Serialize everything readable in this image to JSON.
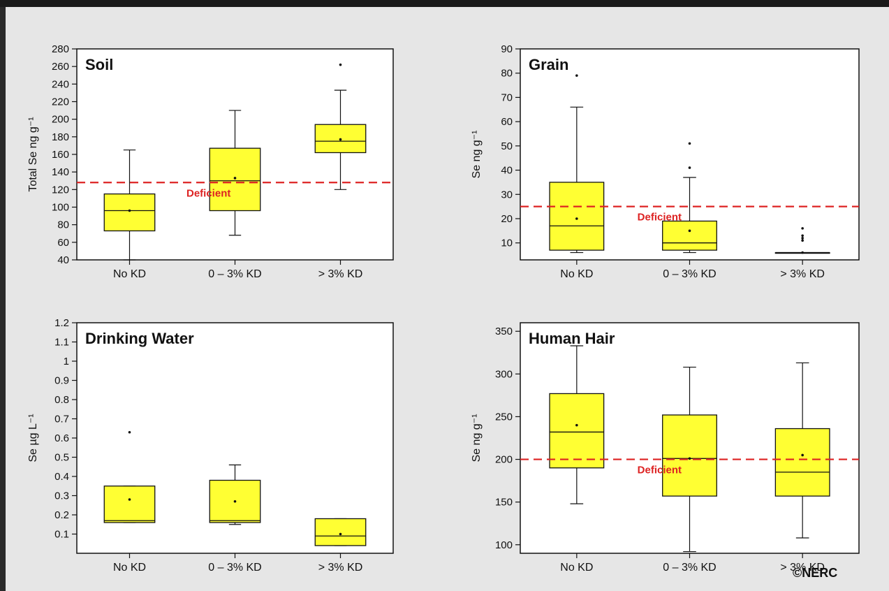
{
  "colors": {
    "box_fill": "#ffff33",
    "box_stroke": "#111111",
    "deficient_line": "#dd2222",
    "panel_bg": "#ffffff"
  },
  "credit": "©NERC",
  "chart_data": [
    {
      "type": "box",
      "title": "Soil",
      "ylabel": "Total Se ng g⁻¹",
      "ylim": [
        40,
        280
      ],
      "yticks": [
        40,
        60,
        80,
        100,
        120,
        140,
        160,
        180,
        200,
        220,
        240,
        260,
        280
      ],
      "categories": [
        "No KD",
        "0 – 3% KD",
        "> 3% KD"
      ],
      "boxes": [
        {
          "whisker_low": 40,
          "q1": 73,
          "median": 96,
          "mean": 96,
          "q3": 115,
          "whisker_high": 165,
          "outliers": []
        },
        {
          "whisker_low": 68,
          "q1": 96,
          "median": 130,
          "mean": 133,
          "q3": 167,
          "whisker_high": 210,
          "outliers": []
        },
        {
          "whisker_low": 120,
          "q1": 162,
          "median": 175,
          "mean": 177,
          "q3": 194,
          "whisker_high": 233,
          "outliers": [
            262
          ]
        }
      ],
      "reference_line": {
        "value": 128,
        "label": "Deficient"
      }
    },
    {
      "type": "box",
      "title": "Grain",
      "ylabel": "Se ng g⁻¹",
      "ylim": [
        3,
        90
      ],
      "yticks": [
        10,
        20,
        30,
        40,
        50,
        60,
        70,
        80,
        90
      ],
      "categories": [
        "No KD",
        "0 – 3% KD",
        "> 3% KD"
      ],
      "boxes": [
        {
          "whisker_low": 6,
          "q1": 7,
          "median": 17,
          "mean": 20,
          "q3": 35,
          "whisker_high": 66,
          "outliers": [
            79
          ]
        },
        {
          "whisker_low": 6,
          "q1": 7,
          "median": 10,
          "mean": 15,
          "q3": 19,
          "whisker_high": 37,
          "outliers": [
            41,
            51
          ]
        },
        {
          "whisker_low": 6,
          "q1": 6,
          "median": 6,
          "mean": 6,
          "q3": 6,
          "whisker_high": 6,
          "outliers": [
            11,
            12,
            13,
            16
          ]
        }
      ],
      "reference_line": {
        "value": 25,
        "label": "Deficient"
      }
    },
    {
      "type": "box",
      "title": "Drinking Water",
      "ylabel": "Se µg L⁻¹",
      "ylim": [
        0,
        1.2
      ],
      "yticks": [
        0.1,
        0.2,
        0.3,
        0.4,
        0.5,
        0.6,
        0.7,
        0.8,
        0.9,
        1,
        1.1,
        1.2
      ],
      "categories": [
        "No KD",
        "0 – 3% KD",
        "> 3% KD"
      ],
      "boxes": [
        {
          "whisker_low": 0.16,
          "q1": 0.16,
          "median": 0.17,
          "mean": 0.28,
          "q3": 0.35,
          "whisker_high": 0.35,
          "outliers": [
            0.63
          ]
        },
        {
          "whisker_low": 0.15,
          "q1": 0.16,
          "median": 0.17,
          "mean": 0.27,
          "q3": 0.38,
          "whisker_high": 0.46,
          "outliers": []
        },
        {
          "whisker_low": 0.04,
          "q1": 0.04,
          "median": 0.09,
          "mean": 0.1,
          "q3": 0.18,
          "whisker_high": 0.18,
          "outliers": []
        }
      ],
      "reference_line": null
    },
    {
      "type": "box",
      "title": "Human Hair",
      "ylabel": "Se ng g⁻¹",
      "ylim": [
        90,
        360
      ],
      "yticks": [
        100,
        150,
        200,
        250,
        300,
        350
      ],
      "categories": [
        "No KD",
        "0 – 3% KD",
        "> 3% KD"
      ],
      "boxes": [
        {
          "whisker_low": 148,
          "q1": 190,
          "median": 232,
          "mean": 240,
          "q3": 277,
          "whisker_high": 333,
          "outliers": []
        },
        {
          "whisker_low": 92,
          "q1": 157,
          "median": 201,
          "mean": 201,
          "q3": 252,
          "whisker_high": 308,
          "outliers": []
        },
        {
          "whisker_low": 108,
          "q1": 157,
          "median": 185,
          "mean": 205,
          "q3": 236,
          "whisker_high": 313,
          "outliers": []
        }
      ],
      "reference_line": {
        "value": 200,
        "label": "Deficient"
      }
    }
  ]
}
